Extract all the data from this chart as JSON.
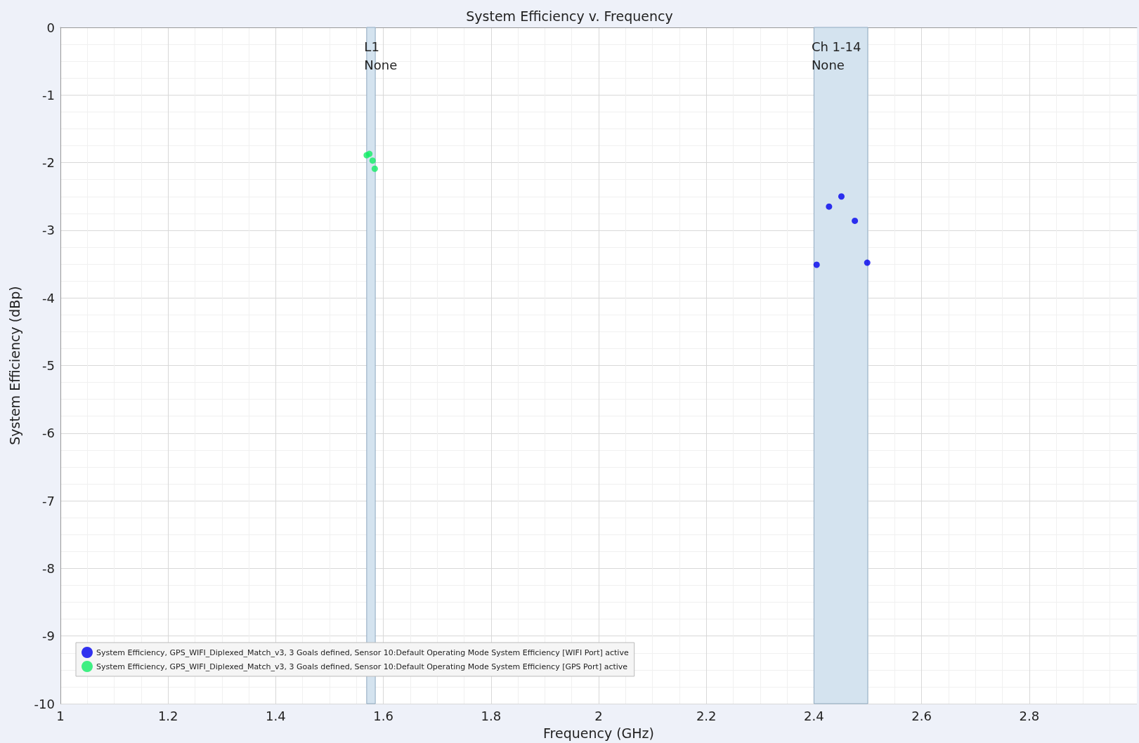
{
  "chart_data": {
    "type": "scatter",
    "title": "System Efficiency v. Frequency",
    "xlabel": "Frequency (GHz)",
    "ylabel": "System Efficiency (dBp)",
    "xlim": [
      1,
      3
    ],
    "xticks": [
      1,
      1.2,
      1.4,
      1.6,
      1.8,
      2,
      2.2,
      2.4,
      2.6,
      2.8
    ],
    "ylim": [
      -10,
      0
    ],
    "yticks": [
      -10,
      -9,
      -8,
      -7,
      -6,
      -5,
      -4,
      -3,
      -2,
      -1,
      0
    ],
    "series": [
      {
        "name": "System Efficiency, GPS_WIFI_Diplexed_Match_v3, 3 Goals defined, Sensor 10:Default Operating Mode System Efficiency [WIFI Port] active",
        "color": "#0000ee",
        "x": [
          2.405,
          2.428,
          2.451,
          2.476,
          2.499
        ],
        "values": [
          -3.51,
          -2.65,
          -2.5,
          -2.86,
          -3.48
        ]
      },
      {
        "name": "System Efficiency, GPS_WIFI_Diplexed_Match_v3, 3 Goals defined, Sensor 10:Default Operating Mode System Efficiency [GPS Port] active",
        "color": "#11ee66",
        "x": [
          1.569,
          1.574,
          1.58,
          1.584
        ],
        "values": [
          -1.89,
          -1.87,
          -1.97,
          -2.09
        ]
      }
    ],
    "bands": [
      {
        "axis": "x",
        "from": 1.569,
        "to": 1.585,
        "label": "L1\nNone",
        "color": "#d4e3ef"
      },
      {
        "axis": "x",
        "from": 2.4,
        "to": 2.5,
        "label": "Ch 1-14\nNone",
        "color": "#d4e3ef"
      }
    ],
    "grid": true,
    "legend": "bottom left",
    "marker": "circle"
  }
}
